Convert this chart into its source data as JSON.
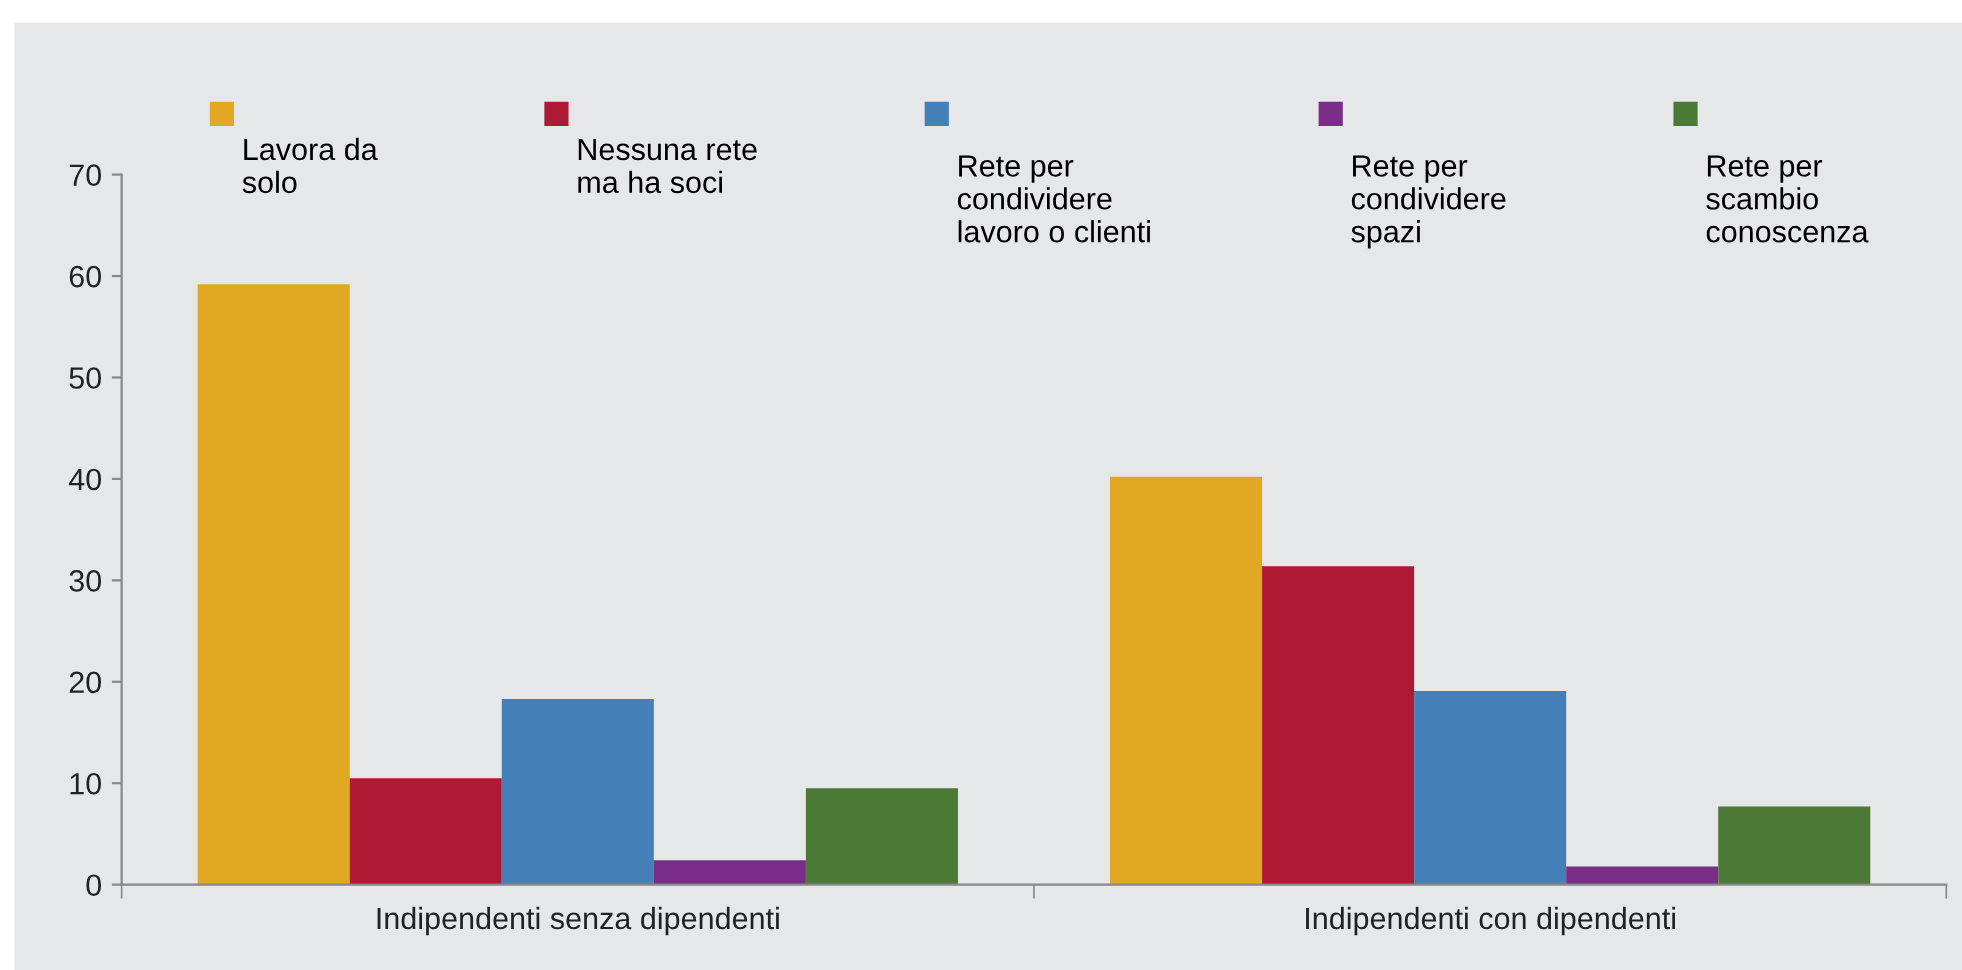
{
  "chart_data": {
    "type": "bar",
    "categories": [
      "Indipendenti senza dipendenti",
      "Indipendenti con dipendenti"
    ],
    "series": [
      {
        "name": "Lavora da\nsolo",
        "color": "#e2a824",
        "values": [
          59.2,
          40.2
        ]
      },
      {
        "name": "Nessuna rete\nma ha soci",
        "color": "#ae1a33",
        "values": [
          10.5,
          31.4
        ]
      },
      {
        "name": "Rete per\ncondividere\nlavoro o clienti",
        "color": "#457fb7",
        "values": [
          18.3,
          19.1
        ]
      },
      {
        "name": "Rete per\ncondividere\nspazi",
        "color": "#7a2d87",
        "values": [
          2.4,
          1.8
        ]
      },
      {
        "name": "Rete per\nscambio\nconoscenza",
        "color": "#4a7a35",
        "values": [
          9.5,
          7.7
        ]
      }
    ],
    "ylim": [
      0,
      70
    ],
    "yticks": [
      0,
      10,
      20,
      30,
      40,
      50,
      60,
      70
    ],
    "grid": false,
    "legend": "top"
  }
}
